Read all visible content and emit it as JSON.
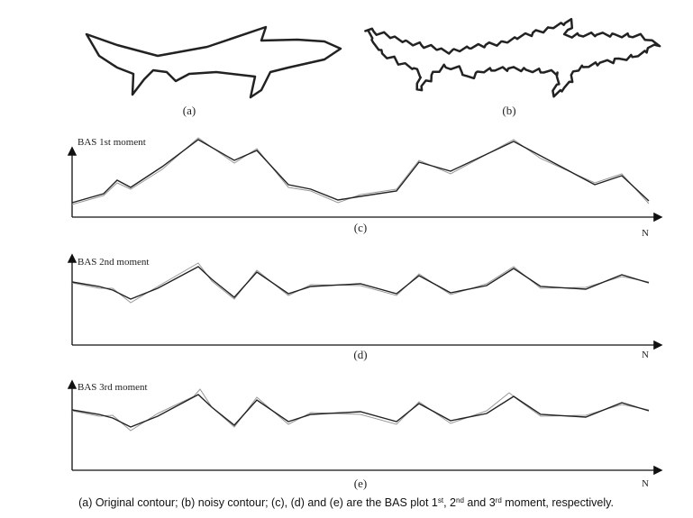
{
  "panels": [
    {
      "label": "(a)"
    },
    {
      "label": "(b)"
    }
  ],
  "plots": [
    {
      "y_label": "BAS 1st moment",
      "label": "(c)",
      "x_label": "N"
    },
    {
      "y_label": "BAS 2nd moment",
      "label": "(d)",
      "x_label": "N"
    },
    {
      "y_label": "BAS 3rd moment",
      "label": "(e)",
      "x_label": "N"
    }
  ],
  "caption": {
    "parts": [
      "(a) Original contour; (b) noisy contour; (c), (d) and (e) are the BAS plot 1",
      "st",
      ", 2",
      "nd",
      " and 3",
      "rd",
      " moment, respectively."
    ]
  }
}
